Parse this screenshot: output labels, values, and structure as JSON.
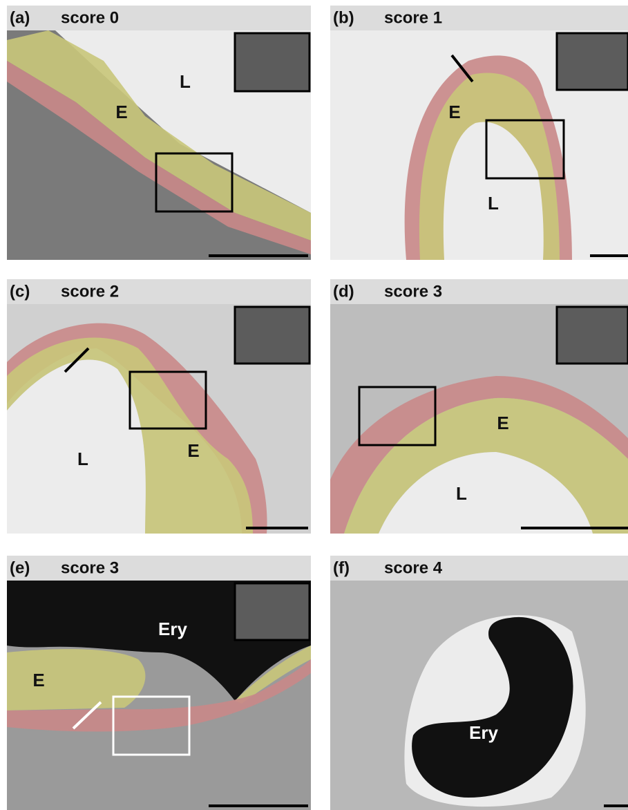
{
  "panels": [
    {
      "label": "(a)",
      "title": "score 0",
      "annotations": [
        "E",
        "L"
      ]
    },
    {
      "label": "(b)",
      "title": "score 1",
      "annotations": [
        "E",
        "L"
      ]
    },
    {
      "label": "(c)",
      "title": "score 2",
      "annotations": [
        "L",
        "E"
      ]
    },
    {
      "label": "(d)",
      "title": "score 3",
      "annotations": [
        "E",
        "L"
      ]
    },
    {
      "label": "(e)",
      "title": "score 3",
      "annotations": [
        "Ery",
        "E"
      ]
    },
    {
      "label": "(f)",
      "title": "score 4",
      "annotations": [
        "Ery"
      ]
    }
  ]
}
